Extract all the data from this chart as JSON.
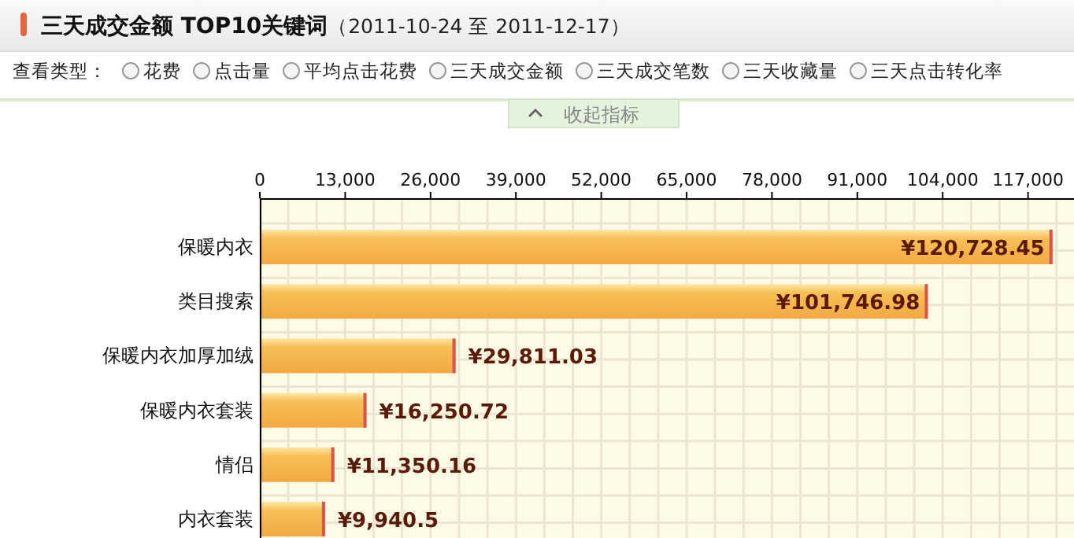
{
  "chart_data": {
    "type": "bar",
    "orientation": "horizontal",
    "title": "三天成交金额 TOP10关键词",
    "subtitle": "（2011-10-24 至 2011-12-17）",
    "annotations": [
      "查看类型：",
      "花费",
      "点击量",
      "平均点击花费",
      "三天成交金额",
      "三天成交笔数",
      "三天收藏量",
      "三天点击转化率",
      "收起指标"
    ],
    "categories": [
      "保暖内衣",
      "类目搜索",
      "保暖内衣加厚加绒",
      "保暖内衣套装",
      "情侣",
      "内衣套装"
    ],
    "values": [
      120728.45,
      101746.98,
      29811.03,
      16250.72,
      11350.16,
      9940.5
    ],
    "value_labels": [
      "¥120,728.45",
      "¥101,746.98",
      "¥29,811.03",
      "¥16,250.72",
      "¥11,350.16",
      "¥9,940.5"
    ],
    "color": "#f7bf55",
    "xlim": [
      0,
      124000
    ],
    "xticks": [
      0,
      {
        "value": 13000,
        "label": "13,000"
      },
      {
        "value": 26000,
        "label": "26,000"
      },
      {
        "value": 39000,
        "label": "39,000"
      },
      {
        "value": 52000,
        "label": "52,000"
      },
      {
        "value": 65000,
        "label": "65,000"
      },
      {
        "value": 78000,
        "label": "78,000"
      },
      {
        "value": 91000,
        "label": "91,000"
      },
      {
        "value": 104000,
        "label": "104,000"
      },
      {
        "value": 117000,
        "label": "117,000"
      }
    ],
    "grid": true
  }
}
